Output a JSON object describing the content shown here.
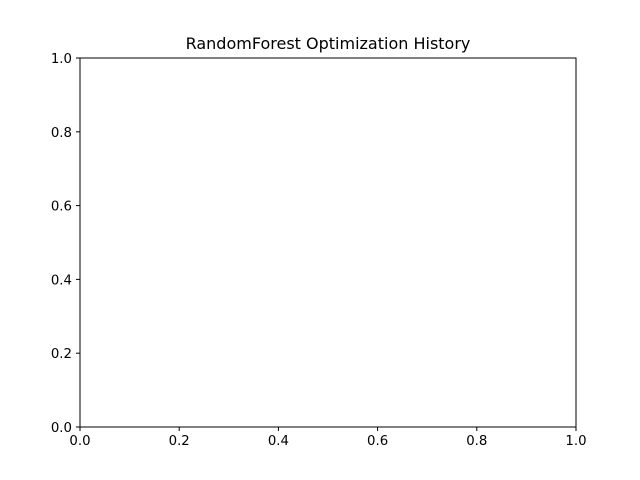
{
  "chart_data": {
    "type": "line",
    "title": "RandomForest Optimization History",
    "xlabel": "",
    "ylabel": "",
    "xlim": [
      0.0,
      1.0
    ],
    "ylim": [
      0.0,
      1.0
    ],
    "x_ticks": [
      0.0,
      0.2,
      0.4,
      0.6,
      0.8,
      1.0
    ],
    "y_ticks": [
      0.0,
      0.2,
      0.4,
      0.6,
      0.8,
      1.0
    ],
    "x_tick_labels": [
      "0.0",
      "0.2",
      "0.4",
      "0.6",
      "0.8",
      "1.0"
    ],
    "y_tick_labels": [
      "0.0",
      "0.2",
      "0.4",
      "0.6",
      "0.8",
      "1.0"
    ],
    "series": [],
    "grid": false,
    "legend": "none"
  }
}
